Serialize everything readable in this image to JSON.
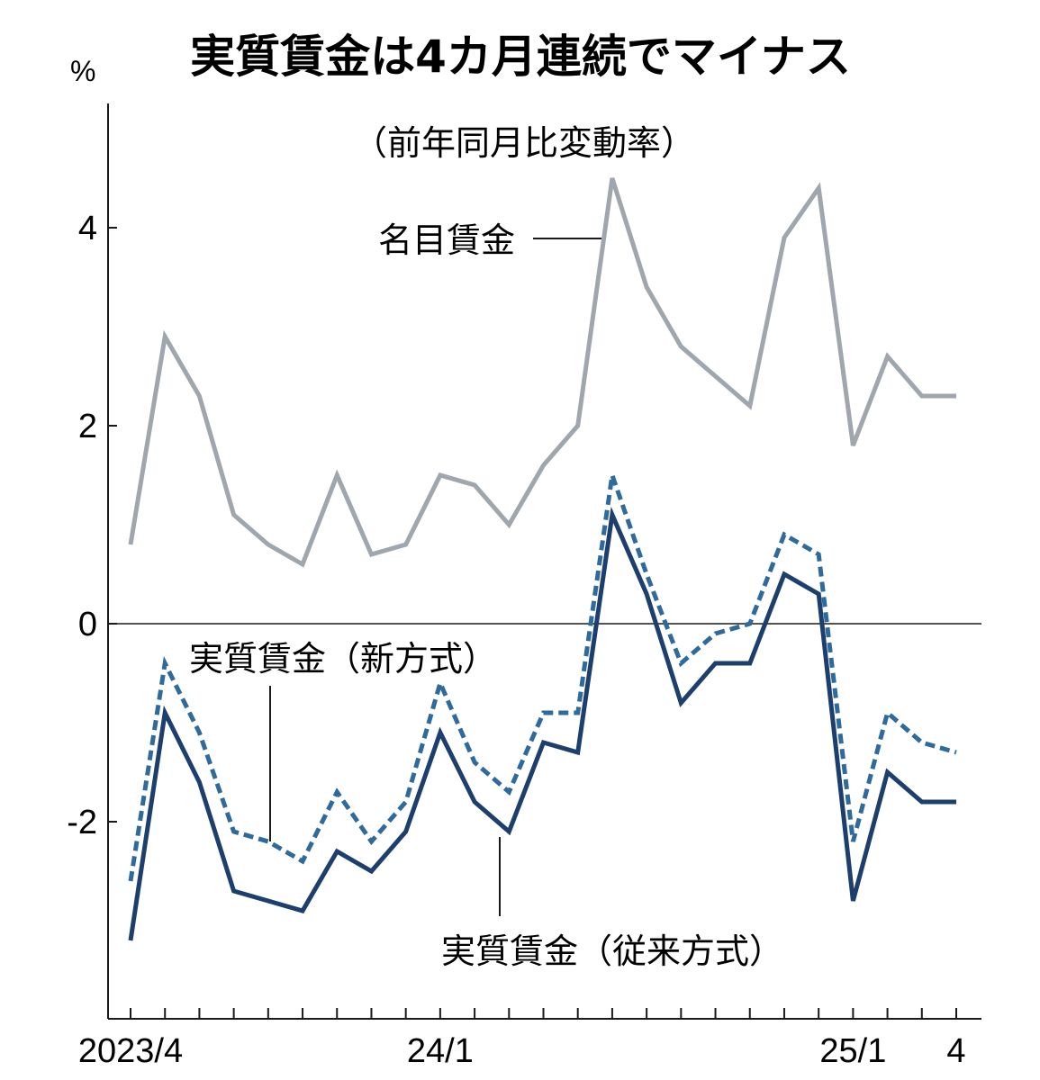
{
  "chart_data": {
    "type": "line",
    "title": "実質賃金は4カ月連続でマイナス",
    "subtitle": "（前年同月比変動率）",
    "ylabel": "%",
    "xlabel": "",
    "ylim": [
      -3.8,
      5.2
    ],
    "yticks": [
      {
        "value": 4,
        "label": "4"
      },
      {
        "value": 2,
        "label": "2"
      },
      {
        "value": 0,
        "label": "0"
      },
      {
        "value": -2,
        "label": "-2"
      }
    ],
    "x": [
      "2023/4",
      "2023/5",
      "2023/6",
      "2023/7",
      "2023/8",
      "2023/9",
      "2023/10",
      "2023/11",
      "2023/12",
      "2024/1",
      "2024/2",
      "2024/3",
      "2024/4",
      "2024/5",
      "2024/6",
      "2024/7",
      "2024/8",
      "2024/9",
      "2024/10",
      "2024/11",
      "2024/12",
      "2025/1",
      "2025/2",
      "2025/3",
      "2025/4"
    ],
    "xtick_labels": [
      {
        "index": 0,
        "label": "2023/4"
      },
      {
        "index": 9,
        "label": "24/1"
      },
      {
        "index": 21,
        "label": "25/1"
      },
      {
        "index": 24,
        "label": "4"
      }
    ],
    "grid": false,
    "series": [
      {
        "name": "名目賃金",
        "color": "#a0a6ad",
        "style": "solid",
        "values": [
          0.8,
          2.9,
          2.3,
          1.1,
          0.8,
          0.6,
          1.5,
          0.7,
          0.8,
          1.5,
          1.4,
          1.0,
          1.6,
          2.0,
          4.5,
          3.4,
          2.8,
          2.5,
          2.2,
          3.9,
          4.4,
          1.8,
          2.7,
          2.3,
          2.3
        ]
      },
      {
        "name": "実質賃金（新方式）",
        "color": "#2e6a9c",
        "style": "dashed",
        "values": [
          -2.6,
          -0.4,
          -1.1,
          -2.1,
          -2.2,
          -2.4,
          -1.7,
          -2.2,
          -1.8,
          -0.6,
          -1.4,
          -1.7,
          -0.9,
          -0.9,
          1.5,
          0.5,
          -0.4,
          -0.1,
          0.0,
          0.9,
          0.7,
          -2.2,
          -0.9,
          -1.2,
          -1.3
        ]
      },
      {
        "name": "実質賃金（従来方式）",
        "color": "#1d3f6e",
        "style": "solid",
        "values": [
          -3.2,
          -0.9,
          -1.6,
          -2.7,
          -2.8,
          -2.9,
          -2.3,
          -2.5,
          -2.1,
          -1.1,
          -1.8,
          -2.1,
          -1.2,
          -1.3,
          1.1,
          0.3,
          -0.8,
          -0.4,
          -0.4,
          0.5,
          0.3,
          -2.8,
          -1.5,
          -1.8,
          -1.8
        ]
      }
    ]
  }
}
